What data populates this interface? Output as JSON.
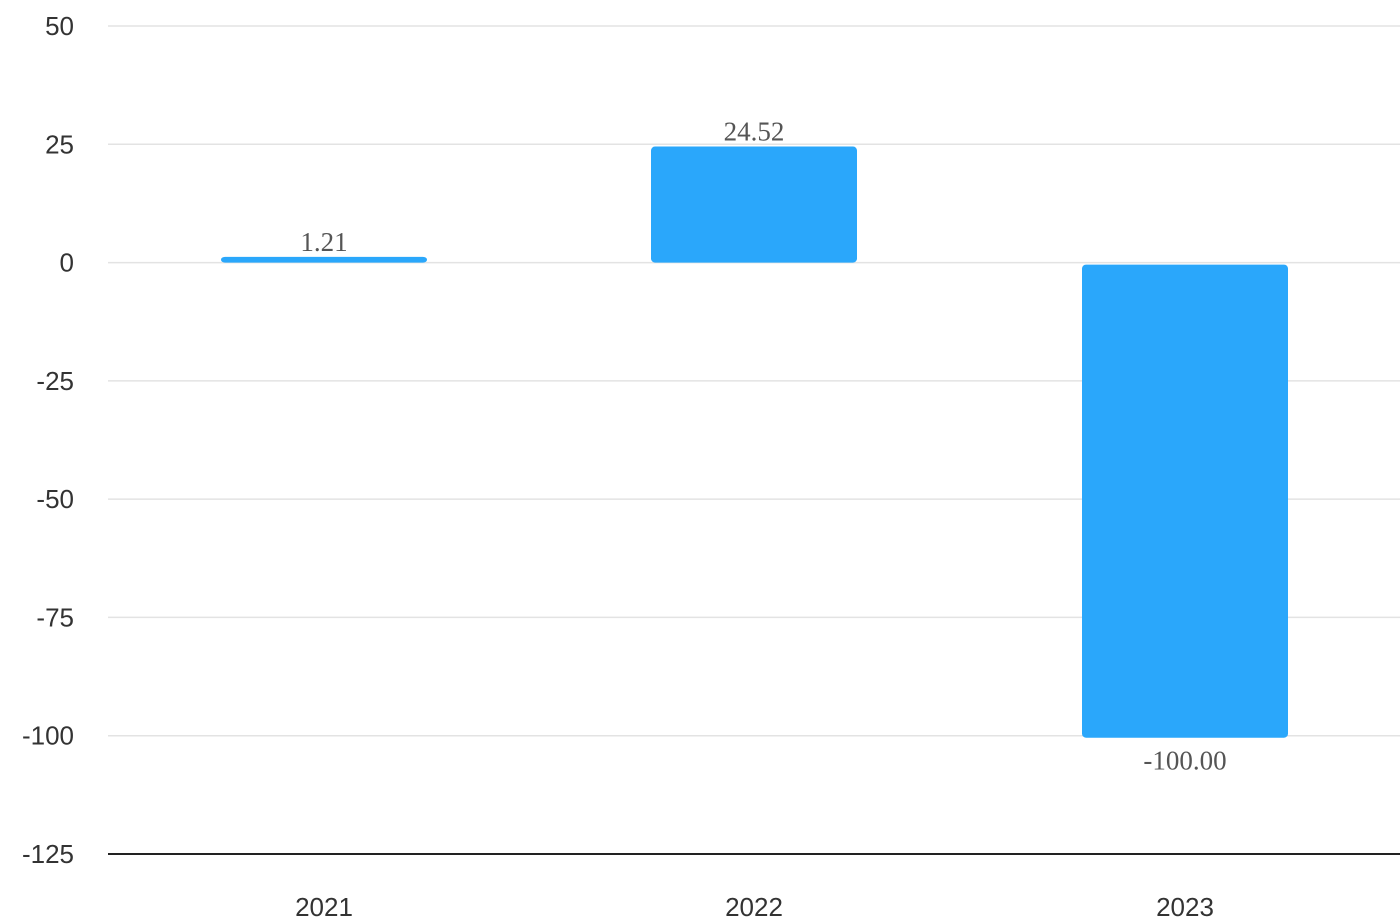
{
  "chart_data": {
    "type": "bar",
    "categories": [
      "2021",
      "2022",
      "2023"
    ],
    "values": [
      1.21,
      24.52,
      -100.0
    ],
    "data_labels": [
      "1.21",
      "24.52",
      "-100.00"
    ],
    "title": "",
    "xlabel": "",
    "ylabel": "",
    "ylim": [
      -125,
      50
    ],
    "yticks": [
      50,
      25,
      0,
      -25,
      -50,
      -75,
      -100,
      -125
    ],
    "ytick_labels": [
      "50",
      "25",
      "0",
      "-25",
      "-50",
      "-75",
      "-100",
      "-125"
    ],
    "grid": true,
    "legend": "none",
    "bar_color": "#2aa7fb",
    "gridline_color": "#e3e3e3",
    "baseline_color": "#222222"
  }
}
